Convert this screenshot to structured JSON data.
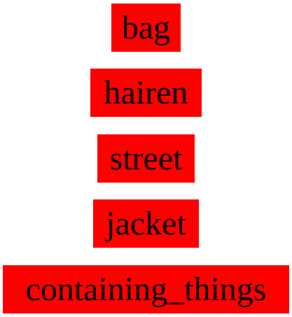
{
  "labels": [
    {
      "text": "bag"
    },
    {
      "text": "hairen"
    },
    {
      "text": "street"
    },
    {
      "text": "jacket"
    },
    {
      "text": "containing_things"
    }
  ],
  "colors": {
    "box_fill": "#ff0000",
    "text": "#000000",
    "background": "#ffffff"
  }
}
